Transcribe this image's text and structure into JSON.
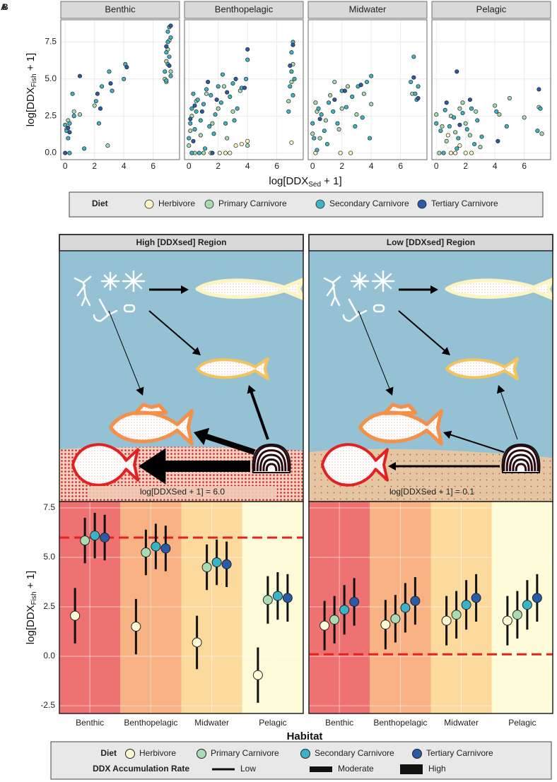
{
  "panel_labels": [
    "A",
    "B"
  ],
  "chart_data": [
    {
      "type": "scatter",
      "x_label": [
        "log[DDX",
        "Sed",
        " + 1]"
      ],
      "y_label": [
        "log[DDX",
        "Fish",
        " + 1]"
      ],
      "xlim": [
        -0.3,
        7.8
      ],
      "xticks": [
        0,
        2,
        4,
        6
      ],
      "ylim": [
        -0.45,
        9.0
      ],
      "yticks": [
        {
          "value": 0,
          "label": "0.0"
        },
        2.5,
        {
          "value": 5,
          "label": "5.0"
        },
        7.5
      ],
      "grid": true,
      "legend": {
        "title": "Diet",
        "items": [
          {
            "name": "Herbivore",
            "color": "#fbf7c6"
          },
          {
            "name": "Primary Carnivore",
            "color": "#a6dbb2"
          },
          {
            "name": "Secondary Carnivore",
            "color": "#3db5c4"
          },
          {
            "name": "Tertiary Carnivore",
            "color": "#2b5aa6"
          }
        ]
      },
      "facets": [
        {
          "title": "Benthic",
          "series": [
            {
              "x": [],
              "y": []
            },
            {
              "x": [
                0.1,
                0.2,
                0.6,
                1.0,
                2.0,
                2.9,
                6.8,
                6.9,
                7.0,
                7.1,
                7.2,
                6.9
              ],
              "y": [
                1.6,
                2.2,
                2.8,
                2.6,
                3.2,
                0.5,
                5.0,
                6.2,
                7.0,
                7.6,
                5.5,
                4.8
              ]
            },
            {
              "x": [
                0,
                0.1,
                0.2,
                0.3,
                0.3,
                0.5,
                0.6,
                1.3,
                2.1,
                2.3,
                2.5,
                3.0,
                3.2,
                4.0,
                4.1,
                6.8,
                6.9,
                7.0,
                7.0,
                7.1,
                7.2,
                7.2,
                6.9,
                7.1,
                7.0
              ],
              "y": [
                1.9,
                1.5,
                1.0,
                2.0,
                0.0,
                4.0,
                2.5,
                0.3,
                3.5,
                2.0,
                4.5,
                5.5,
                4.2,
                5.0,
                6.0,
                5.5,
                6.8,
                7.5,
                8.2,
                6.5,
                5.2,
                7.8,
                4.9,
                8.5,
                6.0
              ]
            },
            {
              "x": [
                0,
                0.2,
                0.3,
                1.0,
                2.2,
                2.4,
                3.1,
                4.2,
                6.9,
                7.1,
                7.2
              ],
              "y": [
                0.0,
                1.7,
                1.4,
                5.2,
                4.0,
                3.0,
                4.7,
                5.8,
                7.2,
                5.9,
                8.6
              ]
            }
          ]
        },
        {
          "title": "Benthopelagic",
          "series": [
            {
              "x": [
                1.5,
                2.1,
                2.5,
                3.2,
                3.6,
                4.0,
                7.0,
                2.8
              ],
              "y": [
                0,
                0,
                0,
                0.5,
                0.6,
                0.8,
                0.7,
                0
              ]
            },
            {
              "x": [
                0,
                0.2,
                0.5,
                0.8,
                1.2,
                1.6,
                2.0,
                2.4,
                3.0,
                3.5,
                4.0,
                6.8,
                7.0,
                7.1,
                0.1,
                1.0,
                0.4,
                2.6
              ],
              "y": [
                0.5,
                2.5,
                3.5,
                1.2,
                4.0,
                2.0,
                3.0,
                4.5,
                2.8,
                4.2,
                0.5,
                3.5,
                4.8,
                6.0,
                1.5,
                0.0,
                0.0,
                1.0
              ]
            },
            {
              "x": [
                0,
                0.1,
                0.2,
                0.3,
                0.4,
                0.5,
                0.6,
                0.8,
                1.0,
                1.2,
                1.4,
                1.5,
                1.8,
                2.0,
                2.2,
                2.5,
                2.8,
                3.0,
                3.3,
                3.6,
                3.9,
                4.0,
                6.8,
                6.9,
                7.0,
                7.0,
                7.1,
                7.2,
                7.1,
                0.2,
                0.7,
                1.1,
                1.7,
                2.3,
                3.1
              ],
              "y": [
                1.0,
                2.0,
                3.0,
                4.0,
                1.6,
                2.8,
                3.6,
                2.2,
                3.3,
                4.3,
                1.8,
                3.9,
                2.6,
                4.5,
                3.4,
                2.0,
                3.8,
                4.7,
                3.0,
                4.4,
                5.0,
                6.3,
                2.8,
                4.5,
                5.5,
                6.8,
                7.5,
                5.0,
                3.9,
                0.0,
                0.0,
                0.3,
                1.3,
                5.3,
                2.2
              ]
            },
            {
              "x": [
                0.1,
                0.4,
                0.9,
                1.3,
                1.9,
                2.6,
                3.2,
                3.8,
                4.0,
                6.9,
                7.1,
                0.3,
                1.6
              ],
              "y": [
                2.3,
                3.2,
                2.8,
                4.8,
                3.6,
                4.1,
                5.0,
                4.4,
                7.0,
                5.9,
                7.3,
                0.8,
                0.0
              ]
            }
          ]
        },
        {
          "title": "Midwater",
          "series": [
            {
              "x": [
                0.2,
                1.9,
                2.6
              ],
              "y": [
                0,
                0,
                0
              ]
            },
            {
              "x": [
                0,
                0.3,
                0.5,
                0.9,
                1.2,
                1.5,
                2.0,
                2.4,
                3.0,
                3.5,
                4.0,
                6.8,
                0.2,
                1.8
              ],
              "y": [
                1.3,
                2.8,
                1.0,
                2.2,
                3.9,
                4.8,
                3.0,
                4.5,
                2.6,
                4.0,
                3.3,
                4.0,
                3.4,
                1.6
              ]
            },
            {
              "x": [
                0,
                0.1,
                0.3,
                0.6,
                0.8,
                1.1,
                1.4,
                1.7,
                2.0,
                2.3,
                2.7,
                3.1,
                3.4,
                3.7,
                4.0,
                6.7,
                6.9,
                7.0,
                7.1,
                7.2,
                0.4,
                1.0,
                2.9,
                3.9
              ],
              "y": [
                2.0,
                1.0,
                0.2,
                2.6,
                1.5,
                3.4,
                2.8,
                2.0,
                4.2,
                3.1,
                3.8,
                4.5,
                2.4,
                4.8,
                5.2,
                4.8,
                6.5,
                4.0,
                3.6,
                4.5,
                3.0,
                0.6,
                1.8,
                1.0
              ]
            },
            {
              "x": [
                0.5,
                1.5,
                2.2,
                3.3,
                6.9,
                7.2
              ],
              "y": [
                2.3,
                3.6,
                4.2,
                4.6,
                5.1,
                3.7
              ]
            }
          ]
        },
        {
          "title": "Pelagic",
          "series": [
            {
              "x": [
                1.0,
                1.3,
                1.6,
                2.0,
                2.4,
                0.8
              ],
              "y": [
                0,
                0,
                0.5,
                0,
                0,
                1.2
              ]
            },
            {
              "x": [
                0,
                0.4,
                0.7,
                1.0,
                1.3,
                1.6,
                2.0,
                2.3,
                2.7,
                3.0,
                4.0,
                4.3,
                5.0,
                6.0,
                7.0,
                7.2,
                0.2,
                1.8
              ],
              "y": [
                2.6,
                1.8,
                0.8,
                2.5,
                1.4,
                3.0,
                2.0,
                1.2,
                2.8,
                0.4,
                3.2,
                2.6,
                3.7,
                2.4,
                3.1,
                1.3,
                0.0,
                3.4
              ]
            },
            {
              "x": [
                0,
                0.3,
                0.6,
                0.9,
                1.2,
                1.5,
                1.8,
                2.1,
                2.4,
                2.8,
                3.1,
                4.1,
                4.8,
                6.9,
                7.1,
                0.5,
                1.4,
                2.6
              ],
              "y": [
                2.0,
                1.5,
                2.9,
                1.8,
                2.4,
                1.0,
                2.7,
                1.6,
                3.0,
                2.2,
                1.1,
                2.8,
                1.8,
                1.5,
                3.0,
                0.0,
                0.3,
                0.6
              ]
            },
            {
              "x": [
                0.7,
                1.4,
                1.6,
                2.3,
                7.0,
                4.2
              ],
              "y": [
                3.4,
                5.5,
                1.9,
                3.6,
                4.3,
                0.8
              ]
            }
          ]
        }
      ]
    },
    {
      "type": "pointrange",
      "x_label": "Habitat",
      "y_label": [
        "log[DDX",
        "Fish",
        " + 1]"
      ],
      "categories": [
        "Benthic",
        "Benthopelagic",
        "Midwater",
        "Pelagic"
      ],
      "band_colors": [
        "#ee7272",
        "#f8b283",
        "#fcd99c",
        "#fdfbd8"
      ],
      "ylim": [
        -2.89,
        7.82
      ],
      "yticks": [
        -2.5,
        {
          "value": 0,
          "label": "0.0"
        },
        2.5,
        {
          "value": 5,
          "label": "5.0"
        },
        7.5
      ],
      "grid": true,
      "hline_color": "#e42222",
      "diet_legend": {
        "title": "Diet",
        "items": [
          {
            "name": "Herbivore",
            "color": "#fdfbd5"
          },
          {
            "name": "Primary Carnivore",
            "color": "#a9dbb4"
          },
          {
            "name": "Secondary Carnivore",
            "color": "#3ab3c8"
          },
          {
            "name": "Tertiary Carnivore",
            "color": "#2b5aa6"
          }
        ]
      },
      "rate_legend": {
        "title": "DDX Accumulation Rate",
        "items": [
          "Low",
          "Moderate",
          "High"
        ]
      },
      "facets": [
        {
          "hline": 6.0,
          "series": [
            {
              "values": [
                2.05,
                1.5,
                0.7,
                -0.95
              ],
              "errors": [
                1.4,
                1.4,
                1.35,
                1.4
              ]
            },
            {
              "values": [
                5.85,
                5.25,
                4.5,
                2.85
              ],
              "errors": [
                1.15,
                1.15,
                1.15,
                1.2
              ]
            },
            {
              "values": [
                6.1,
                5.55,
                4.75,
                3.05
              ],
              "errors": [
                1.15,
                1.15,
                1.15,
                1.2
              ]
            },
            {
              "values": [
                6.0,
                5.45,
                4.65,
                2.95
              ],
              "errors": [
                1.15,
                1.15,
                1.15,
                1.2
              ]
            }
          ]
        },
        {
          "hline": 0.1,
          "series": [
            {
              "values": [
                1.55,
                1.6,
                1.8,
                1.8
              ],
              "errors": [
                1.25,
                1.25,
                1.25,
                1.25
              ]
            },
            {
              "values": [
                1.85,
                1.9,
                2.1,
                2.1
              ],
              "errors": [
                1.2,
                1.2,
                1.2,
                1.2
              ]
            },
            {
              "values": [
                2.35,
                2.45,
                2.6,
                2.6
              ],
              "errors": [
                1.25,
                1.25,
                1.25,
                1.25
              ]
            },
            {
              "values": [
                2.75,
                2.8,
                2.95,
                2.95
              ],
              "errors": [
                1.2,
                1.2,
                1.2,
                1.2
              ]
            }
          ]
        }
      ]
    }
  ],
  "diagram": {
    "panels": [
      {
        "title": "High [DDXsed] Region",
        "sediment_label": "log[DDXSed + 1] = 6.0"
      },
      {
        "title": "Low [DDXsed] Region",
        "sediment_label": "log[DDXSed + 1] = 0.1"
      }
    ]
  }
}
